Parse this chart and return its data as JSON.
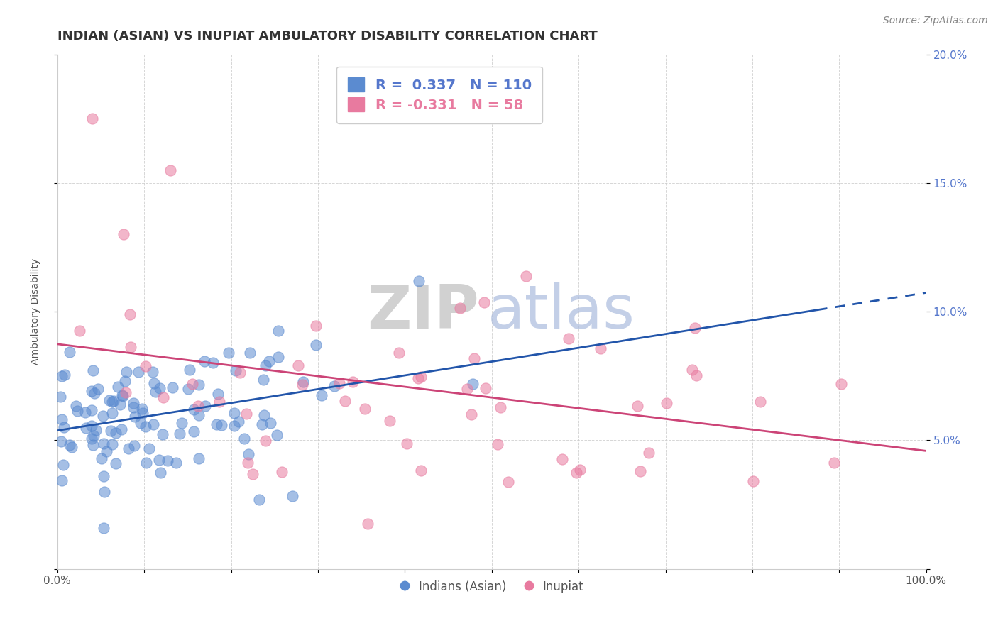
{
  "title": "INDIAN (ASIAN) VS INUPIAT AMBULATORY DISABILITY CORRELATION CHART",
  "source": "Source: ZipAtlas.com",
  "xlabel": "",
  "ylabel": "Ambulatory Disability",
  "xlim": [
    0,
    1.0
  ],
  "ylim": [
    0,
    0.2
  ],
  "xticks": [
    0.0,
    0.1,
    0.2,
    0.3,
    0.4,
    0.5,
    0.6,
    0.7,
    0.8,
    0.9,
    1.0
  ],
  "xtick_labels": [
    "0.0%",
    "",
    "",
    "",
    "",
    "",
    "",
    "",
    "",
    "",
    "100.0%"
  ],
  "yticks": [
    0.0,
    0.05,
    0.1,
    0.15,
    0.2
  ],
  "ytick_labels_right": [
    "",
    "5.0%",
    "10.0%",
    "15.0%",
    "20.0%"
  ],
  "blue_color": "#5B8BD0",
  "pink_color": "#E87A9F",
  "trend_blue": "#2255AA",
  "trend_pink": "#CC4477",
  "blue_R": 0.337,
  "blue_N": 110,
  "pink_R": -0.331,
  "pink_N": 58,
  "legend_label_blue": "Indians (Asian)",
  "legend_label_pink": "Inupiat",
  "title_fontsize": 13,
  "label_fontsize": 10,
  "tick_fontsize": 11,
  "source_fontsize": 10,
  "legend_fontsize": 14
}
